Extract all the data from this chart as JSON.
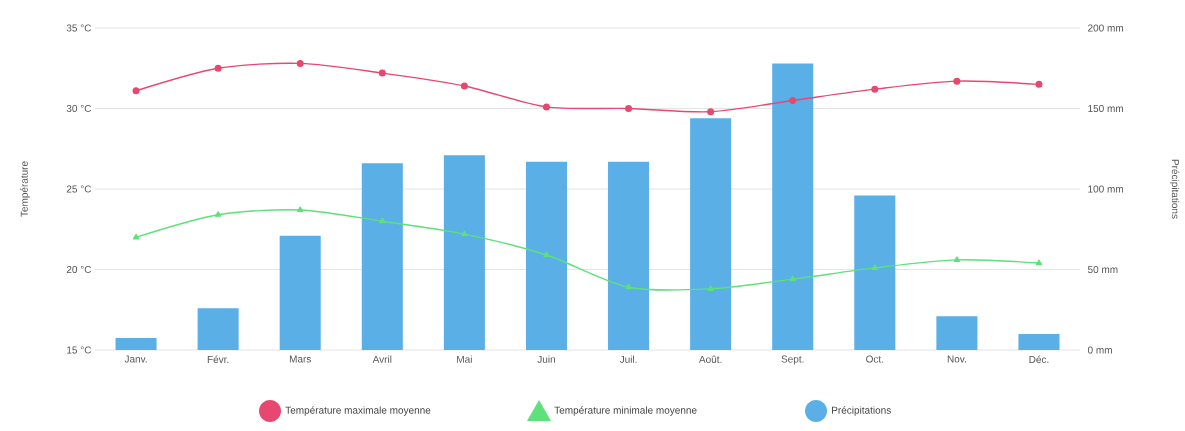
{
  "chart_data": {
    "type": "line",
    "categories": [
      "Janv.",
      "Févr.",
      "Mars",
      "Avril",
      "Mai",
      "Juin",
      "Juil.",
      "Août.",
      "Sept.",
      "Oct.",
      "Nov.",
      "Déc."
    ],
    "series": [
      {
        "name": "Température maximale moyenne",
        "color": "#e8486f",
        "marker": "circle",
        "values": [
          31.1,
          32.5,
          32.8,
          32.2,
          31.4,
          30.1,
          30.0,
          29.8,
          30.5,
          31.2,
          31.7,
          31.5
        ]
      },
      {
        "name": "Température minimale moyenne",
        "color": "#5ee07a",
        "marker": "triangle",
        "values": [
          22.0,
          23.4,
          23.7,
          23.0,
          22.2,
          20.9,
          18.9,
          18.8,
          19.4,
          20.1,
          20.6,
          20.4
        ]
      },
      {
        "name": "Précipitations",
        "type": "bar",
        "axis": "y2",
        "color": "#5aafe6",
        "values": [
          7.5,
          26,
          71,
          116,
          121,
          117,
          117,
          144,
          178,
          96,
          21,
          10
        ]
      }
    ],
    "ylabel": "Température",
    "y2label": "Précipitations",
    "ylim": [
      15,
      35
    ],
    "yticks": [
      {
        "value": 15,
        "label": "15 °C"
      },
      {
        "value": 20,
        "label": "20 °C"
      },
      {
        "value": 25,
        "label": "25 °C"
      },
      {
        "value": 30,
        "label": "30 °C"
      },
      {
        "value": 35,
        "label": "35 °C"
      }
    ],
    "y2lim": [
      0,
      200
    ],
    "y2ticks": [
      {
        "value": 0,
        "label": "0 mm"
      },
      {
        "value": 50,
        "label": "50 mm"
      },
      {
        "value": 100,
        "label": "100 mm"
      },
      {
        "value": 150,
        "label": "150 mm"
      },
      {
        "value": 200,
        "label": "200 mm"
      }
    ],
    "grid": "y",
    "legend": "bottom"
  }
}
